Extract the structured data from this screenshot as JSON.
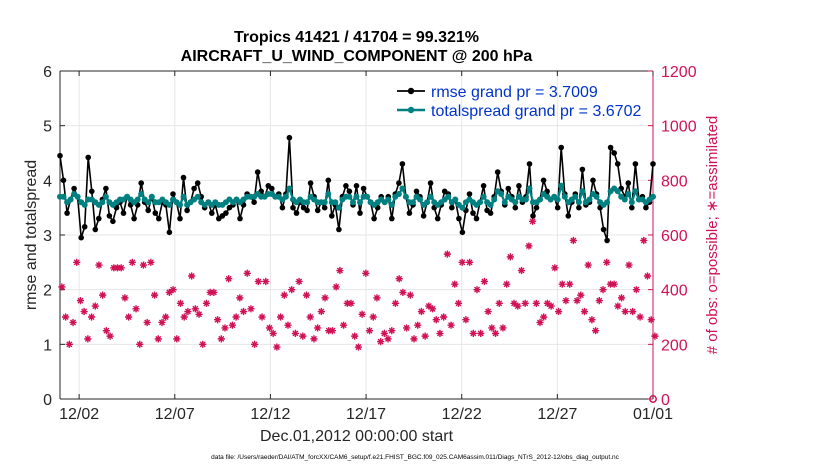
{
  "chart_data": {
    "type": "line",
    "title_line1": "Tropics 41421 / 41704 = 99.321%",
    "title_line2": "AIRCRAFT_U_WIND_COMPONENT @ 200 hPa",
    "xlabel": "Dec.01,2012 00:00:00 start",
    "ylabel_left": "rmse and totalspread",
    "ylabel_right": "# of obs: o=possible; ∗=assimilated",
    "footnote": "data file: /Users/raeder/DAI/ATM_forcXX/CAM6_setup/f.e21.FHIST_BGC.f09_025.CAM6assim.011/Diags_NTrS_2012-12/obs_diag_output.nc",
    "xlim": [
      0,
      31
    ],
    "ylim_left": [
      0,
      6
    ],
    "ylim_right": [
      0,
      1200
    ],
    "x_ticks": [
      1,
      6,
      11,
      16,
      21,
      26,
      31
    ],
    "x_tick_labels": [
      "12/02",
      "12/07",
      "12/12",
      "12/17",
      "12/22",
      "12/27",
      "01/01"
    ],
    "y_ticks_left": [
      0,
      1,
      2,
      3,
      4,
      5,
      6
    ],
    "y_ticks_right": [
      0,
      200,
      400,
      600,
      800,
      1000,
      1200
    ],
    "legend": {
      "placement": "top-right",
      "entries": [
        "rmse grand pr = 3.7009",
        "totalspread grand pr = 3.6702"
      ]
    },
    "colors": {
      "rmse": "#000000",
      "spread": "#008080",
      "obs": "#d11155",
      "axis": "#262626",
      "legend_text": "#0033cc"
    },
    "series": [
      {
        "name": "rmse",
        "axis": "left",
        "values": [
          4.45,
          4.0,
          3.4,
          3.65,
          3.85,
          3.7,
          2.95,
          3.15,
          4.42,
          3.8,
          3.1,
          3.3,
          3.65,
          3.85,
          3.35,
          3.25,
          3.5,
          3.6,
          3.4,
          3.7,
          3.55,
          3.3,
          3.55,
          3.95,
          3.6,
          3.45,
          3.7,
          3.4,
          3.3,
          3.6,
          3.55,
          3.05,
          3.75,
          3.6,
          3.3,
          4.05,
          3.45,
          3.6,
          3.85,
          3.95,
          3.7,
          3.5,
          3.6,
          3.4,
          3.55,
          3.3,
          3.35,
          3.4,
          3.5,
          3.55,
          3.65,
          3.3,
          3.55,
          3.75,
          3.7,
          3.6,
          4.15,
          3.8,
          3.7,
          3.9,
          3.85,
          3.7,
          3.75,
          3.5,
          3.75,
          4.78,
          3.5,
          3.4,
          3.6,
          3.5,
          3.45,
          3.95,
          3.7,
          3.45,
          3.6,
          3.5,
          4.0,
          3.35,
          3.55,
          3.1,
          3.7,
          3.9,
          3.8,
          3.55,
          3.9,
          3.4,
          3.85,
          3.7,
          3.6,
          3.3,
          3.5,
          3.7,
          3.6,
          3.7,
          3.3,
          3.75,
          3.95,
          4.3,
          3.7,
          3.4,
          3.55,
          3.8,
          3.7,
          3.35,
          3.6,
          3.95,
          3.5,
          3.3,
          3.55,
          3.8,
          3.75,
          3.5,
          3.65,
          3.3,
          3.05,
          3.45,
          3.75,
          3.4,
          3.3,
          3.6,
          3.9,
          3.45,
          3.4,
          3.7,
          4.15,
          3.8,
          3.55,
          3.85,
          3.7,
          3.5,
          3.9,
          3.6,
          3.7,
          4.3,
          3.35,
          3.5,
          3.65,
          4.0,
          3.8,
          3.65,
          3.7,
          3.5,
          4.6,
          3.75,
          3.35,
          3.6,
          3.75,
          3.5,
          4.2,
          3.55,
          3.6,
          4.0,
          3.75,
          3.5,
          3.1,
          2.9,
          4.6,
          4.5,
          4.3,
          3.85,
          3.7,
          3.95,
          3.5,
          4.3,
          3.65,
          3.7,
          3.5,
          3.6,
          4.3
        ]
      },
      {
        "name": "totalspread",
        "axis": "left",
        "values": [
          3.7,
          3.7,
          3.6,
          3.65,
          3.75,
          3.7,
          3.6,
          3.55,
          3.65,
          3.65,
          3.6,
          3.55,
          3.6,
          3.7,
          3.6,
          3.55,
          3.6,
          3.65,
          3.65,
          3.7,
          3.65,
          3.6,
          3.65,
          3.75,
          3.65,
          3.6,
          3.7,
          3.6,
          3.6,
          3.65,
          3.6,
          3.55,
          3.65,
          3.6,
          3.55,
          3.7,
          3.55,
          3.6,
          3.65,
          3.7,
          3.6,
          3.55,
          3.6,
          3.55,
          3.6,
          3.55,
          3.55,
          3.6,
          3.65,
          3.6,
          3.65,
          3.6,
          3.65,
          3.7,
          3.7,
          3.7,
          3.75,
          3.7,
          3.7,
          3.75,
          3.75,
          3.7,
          3.7,
          3.65,
          3.7,
          3.85,
          3.65,
          3.6,
          3.65,
          3.6,
          3.6,
          3.7,
          3.65,
          3.6,
          3.6,
          3.6,
          3.75,
          3.6,
          3.6,
          3.5,
          3.65,
          3.7,
          3.7,
          3.6,
          3.7,
          3.6,
          3.7,
          3.7,
          3.6,
          3.55,
          3.6,
          3.65,
          3.6,
          3.65,
          3.55,
          3.7,
          3.75,
          3.85,
          3.7,
          3.6,
          3.6,
          3.7,
          3.65,
          3.55,
          3.6,
          3.7,
          3.6,
          3.55,
          3.6,
          3.65,
          3.7,
          3.6,
          3.65,
          3.55,
          3.5,
          3.6,
          3.65,
          3.6,
          3.55,
          3.6,
          3.7,
          3.6,
          3.55,
          3.65,
          3.8,
          3.75,
          3.6,
          3.7,
          3.65,
          3.6,
          3.7,
          3.65,
          3.65,
          3.85,
          3.6,
          3.6,
          3.65,
          3.75,
          3.7,
          3.65,
          3.7,
          3.65,
          3.9,
          3.7,
          3.6,
          3.65,
          3.7,
          3.6,
          3.8,
          3.6,
          3.65,
          3.75,
          3.7,
          3.6,
          3.55,
          3.6,
          3.8,
          3.85,
          3.8,
          3.7,
          3.65,
          3.75,
          3.6,
          3.8,
          3.65,
          3.65,
          3.6,
          3.65,
          3.7
        ]
      },
      {
        "name": "obs_possible",
        "axis": "right",
        "values": [
          410,
          300,
          200,
          280,
          500,
          360,
          320,
          220,
          300,
          340,
          490,
          380,
          250,
          230,
          480,
          480,
          480,
          370,
          300,
          500,
          330,
          200,
          490,
          280,
          500,
          380,
          220,
          280,
          300,
          390,
          400,
          220,
          350,
          300,
          320,
          450,
          330,
          310,
          200,
          350,
          390,
          390,
          290,
          220,
          260,
          440,
          270,
          300,
          370,
          320,
          460,
          330,
          200,
          430,
          300,
          430,
          260,
          240,
          190,
          300,
          380,
          270,
          400,
          240,
          430,
          230,
          380,
          300,
          220,
          260,
          320,
          370,
          250,
          250,
          410,
          470,
          270,
          350,
          350,
          230,
          190,
          310,
          460,
          250,
          300,
          370,
          210,
          240,
          220,
          250,
          350,
          440,
          390,
          260,
          380,
          220,
          270,
          320,
          230,
          340,
          330,
          290,
          240,
          300,
          530,
          270,
          420,
          350,
          500,
          290,
          500,
          240,
          400,
          240,
          430,
          320,
          260,
          240,
          350,
          260,
          420,
          520,
          350,
          340,
          470,
          350,
          560,
          650,
          350,
          280,
          300,
          350,
          340,
          480,
          320,
          420,
          360,
          420,
          580,
          360,
          380,
          320,
          490,
          290,
          250,
          360,
          400,
          500,
          420,
          420,
          340,
          370,
          320,
          490,
          320,
          400,
          300,
          580,
          450,
          290,
          230
        ]
      }
    ]
  }
}
